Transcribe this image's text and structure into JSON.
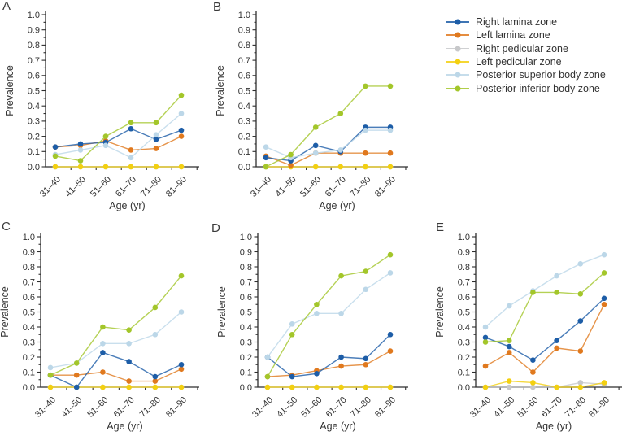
{
  "legend": {
    "position": "top-right",
    "items": [
      {
        "label": "Right lamina zone",
        "color": "#1d5da7"
      },
      {
        "label": "Left lamina zone",
        "color": "#e0791e"
      },
      {
        "label": "Right pedicular zone",
        "color": "#c7c8ca"
      },
      {
        "label": "Left pedicular zone",
        "color": "#f3d010"
      },
      {
        "label": "Posterior superior body zone",
        "color": "#bcd7e8"
      },
      {
        "label": "Posterior inferior body zone",
        "color": "#a3c62a"
      }
    ]
  },
  "chart_data": [
    {
      "panel": "A",
      "type": "line",
      "xlabel": "Age (yr)",
      "ylabel": "Prevalence",
      "categories": [
        "31–40",
        "41–50",
        "51–60",
        "61–70",
        "71–80",
        "81–90"
      ],
      "ylim": [
        0.0,
        1.0
      ],
      "ytick_step": 0.1,
      "grid": false,
      "series": [
        {
          "name": "Right lamina zone",
          "values": [
            0.13,
            0.15,
            0.16,
            0.25,
            0.18,
            0.24
          ]
        },
        {
          "name": "Left lamina zone",
          "values": [
            0.13,
            0.14,
            0.17,
            0.11,
            0.12,
            0.2
          ]
        },
        {
          "name": "Right pedicular zone",
          "values": [
            0.0,
            0.0,
            0.0,
            0.0,
            0.0,
            0.0
          ]
        },
        {
          "name": "Left pedicular zone",
          "values": [
            0.0,
            0.0,
            0.0,
            0.0,
            0.0,
            0.0
          ]
        },
        {
          "name": "Posterior superior body zone",
          "values": [
            0.08,
            0.11,
            0.14,
            0.06,
            0.21,
            0.35
          ]
        },
        {
          "name": "Posterior inferior body zone",
          "values": [
            0.07,
            0.04,
            0.2,
            0.29,
            0.29,
            0.47
          ]
        }
      ]
    },
    {
      "panel": "B",
      "type": "line",
      "xlabel": "Age (yr)",
      "ylabel": "Prevalence",
      "categories": [
        "31–40",
        "41–50",
        "51–60",
        "61–70",
        "71–80",
        "81–90"
      ],
      "ylim": [
        0.0,
        1.0
      ],
      "ytick_step": 0.1,
      "grid": false,
      "series": [
        {
          "name": "Right lamina zone",
          "values": [
            0.06,
            0.04,
            0.14,
            0.1,
            0.26,
            0.26
          ]
        },
        {
          "name": "Left lamina zone",
          "values": [
            0.07,
            0.01,
            0.09,
            0.09,
            0.09,
            0.09
          ]
        },
        {
          "name": "Right pedicular zone",
          "values": [
            0.0,
            0.0,
            0.0,
            0.0,
            0.0,
            0.0
          ]
        },
        {
          "name": "Left pedicular zone",
          "values": [
            0.0,
            0.0,
            0.0,
            0.0,
            0.0,
            0.0
          ]
        },
        {
          "name": "Posterior superior body zone",
          "values": [
            0.13,
            0.06,
            0.09,
            0.11,
            0.24,
            0.24
          ]
        },
        {
          "name": "Posterior inferior body zone",
          "values": [
            0.0,
            0.08,
            0.26,
            0.35,
            0.53,
            0.53
          ]
        }
      ]
    },
    {
      "panel": "C",
      "type": "line",
      "xlabel": "Age (yr)",
      "ylabel": "Prevalence",
      "categories": [
        "31–40",
        "41–50",
        "51–60",
        "61–70",
        "71–80",
        "81–90"
      ],
      "ylim": [
        0.0,
        1.0
      ],
      "ytick_step": 0.1,
      "grid": false,
      "series": [
        {
          "name": "Right lamina zone",
          "values": [
            0.08,
            0.0,
            0.23,
            0.17,
            0.07,
            0.15
          ]
        },
        {
          "name": "Left lamina zone",
          "values": [
            0.08,
            0.08,
            0.1,
            0.04,
            0.04,
            0.12
          ]
        },
        {
          "name": "Right pedicular zone",
          "values": [
            0.0,
            0.0,
            0.0,
            0.0,
            0.0,
            0.0
          ]
        },
        {
          "name": "Left pedicular zone",
          "values": [
            0.0,
            0.0,
            0.0,
            0.0,
            0.0,
            0.0
          ]
        },
        {
          "name": "Posterior superior body zone",
          "values": [
            0.13,
            0.16,
            0.29,
            0.29,
            0.35,
            0.5
          ]
        },
        {
          "name": "Posterior inferior body zone",
          "values": [
            0.08,
            0.16,
            0.4,
            0.38,
            0.53,
            0.74
          ]
        }
      ]
    },
    {
      "panel": "D",
      "type": "line",
      "xlabel": "Age (yr)",
      "ylabel": "Prevalence",
      "categories": [
        "31–40",
        "41–50",
        "51–60",
        "61–70",
        "71–80",
        "81–90"
      ],
      "ylim": [
        0.0,
        1.0
      ],
      "ytick_step": 0.1,
      "grid": false,
      "series": [
        {
          "name": "Right lamina zone",
          "values": [
            0.2,
            0.07,
            0.09,
            0.2,
            0.19,
            0.35
          ]
        },
        {
          "name": "Left lamina zone",
          "values": [
            0.07,
            0.08,
            0.11,
            0.14,
            0.15,
            0.24
          ]
        },
        {
          "name": "Right pedicular zone",
          "values": [
            0.0,
            0.0,
            0.0,
            0.0,
            0.0,
            0.0
          ]
        },
        {
          "name": "Left pedicular zone",
          "values": [
            0.0,
            0.0,
            0.0,
            0.0,
            0.0,
            0.0
          ]
        },
        {
          "name": "Posterior superior body zone",
          "values": [
            0.2,
            0.42,
            0.49,
            0.49,
            0.65,
            0.76
          ]
        },
        {
          "name": "Posterior inferior body zone",
          "values": [
            0.07,
            0.35,
            0.55,
            0.74,
            0.77,
            0.88
          ]
        }
      ]
    },
    {
      "panel": "E",
      "type": "line",
      "xlabel": "Age (yr)",
      "ylabel": "Prevalence",
      "categories": [
        "31–40",
        "41–50",
        "51–60",
        "61–70",
        "71–80",
        "81–90"
      ],
      "ylim": [
        0.0,
        1.0
      ],
      "ytick_step": 0.1,
      "grid": false,
      "series": [
        {
          "name": "Right lamina zone",
          "values": [
            0.33,
            0.27,
            0.18,
            0.31,
            0.44,
            0.59
          ]
        },
        {
          "name": "Left lamina zone",
          "values": [
            0.14,
            0.23,
            0.1,
            0.26,
            0.24,
            0.55
          ]
        },
        {
          "name": "Right pedicular zone",
          "values": [
            0.0,
            0.0,
            0.0,
            0.0,
            0.03,
            0.02
          ]
        },
        {
          "name": "Left pedicular zone",
          "values": [
            0.0,
            0.04,
            0.03,
            0.0,
            0.0,
            0.03
          ]
        },
        {
          "name": "Posterior superior body zone",
          "values": [
            0.4,
            0.54,
            0.64,
            0.74,
            0.82,
            0.88
          ]
        },
        {
          "name": "Posterior inferior body zone",
          "values": [
            0.3,
            0.31,
            0.63,
            0.63,
            0.62,
            0.76
          ]
        }
      ]
    }
  ]
}
